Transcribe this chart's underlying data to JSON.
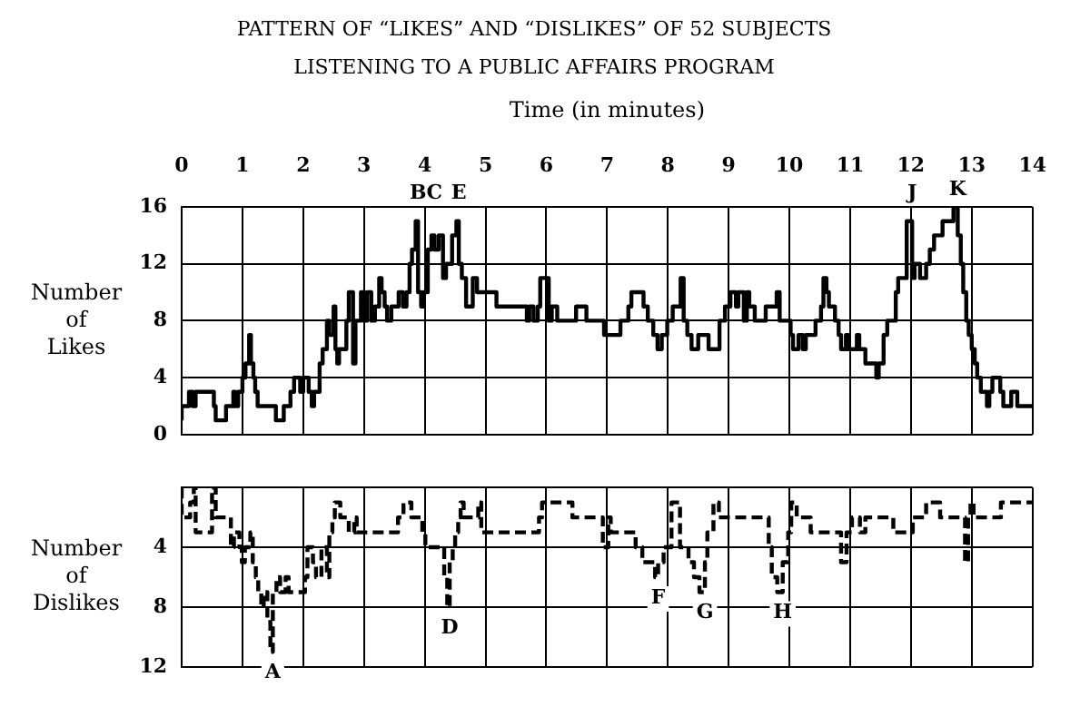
{
  "chart_data": [
    {
      "type": "step",
      "title": "PATTERN OF “LIKES” AND “DISLIKES” OF 52 SUBJECTS",
      "subtitle": "LISTENING TO A PUBLIC AFFAIRS PROGRAM",
      "xlabel": "Time (in minutes)",
      "ylabel": "Number of Likes",
      "color": "#000000",
      "line_style": "solid",
      "grid": true,
      "x": [
        0,
        0.12,
        0.18,
        0.23,
        0.53,
        0.56,
        0.73,
        0.85,
        0.88,
        0.93,
        1.0,
        1.05,
        1.11,
        1.14,
        1.18,
        1.21,
        1.25,
        1.55,
        1.68,
        1.79,
        1.85,
        1.95,
        2.0,
        2.09,
        2.14,
        2.18,
        2.27,
        2.32,
        2.39,
        2.43,
        2.5,
        2.53,
        2.56,
        2.59,
        2.71,
        2.75,
        2.82,
        2.86,
        2.95,
        3.0,
        3.05,
        3.12,
        3.18,
        3.25,
        3.29,
        3.34,
        3.38,
        3.45,
        3.57,
        3.64,
        3.7,
        3.75,
        3.79,
        3.85,
        3.89,
        3.94,
        3.98,
        4.05,
        4.11,
        4.16,
        4.23,
        4.3,
        4.35,
        4.45,
        4.52,
        4.56,
        4.61,
        4.68,
        4.79,
        4.86,
        5.18,
        5.68,
        5.72,
        5.79,
        5.86,
        5.9,
        6.04,
        6.09,
        6.18,
        6.49,
        6.66,
        6.95,
        7.22,
        7.35,
        7.4,
        7.6,
        7.67,
        7.76,
        7.83,
        7.9,
        7.99,
        8.08,
        8.21,
        8.26,
        8.32,
        8.39,
        8.5,
        8.67,
        8.85,
        8.94,
        9.03,
        9.12,
        9.16,
        9.25,
        9.3,
        9.34,
        9.43,
        9.61,
        9.79,
        9.84,
        10.02,
        10.06,
        10.15,
        10.22,
        10.27,
        10.43,
        10.52,
        10.56,
        10.61,
        10.65,
        10.75,
        10.81,
        10.85,
        10.93,
        10.97,
        11.11,
        11.15,
        11.25,
        11.43,
        11.47,
        11.55,
        11.61,
        11.75,
        11.79,
        11.93,
        12.02,
        12.06,
        12.15,
        12.25,
        12.31,
        12.38,
        12.52,
        12.7,
        12.77,
        12.82,
        12.86,
        12.91,
        12.95,
        13.0,
        13.05,
        13.09,
        13.15,
        13.25,
        13.29,
        13.34,
        13.47,
        13.52,
        13.65,
        13.75,
        13.82,
        14.0
      ],
      "values": [
        1,
        2,
        3,
        2,
        3,
        2,
        1,
        2,
        3,
        2,
        3,
        4,
        5,
        7,
        5,
        4,
        3,
        2,
        1,
        2,
        3,
        4,
        3,
        4,
        3,
        2,
        3,
        5,
        6,
        8,
        7,
        9,
        6,
        5,
        6,
        8,
        10,
        5,
        8,
        10,
        8,
        10,
        8,
        9,
        11,
        10,
        9,
        8,
        9,
        10,
        9,
        10,
        12,
        13,
        15,
        10,
        9,
        10,
        13,
        14,
        13,
        14,
        11,
        12,
        14,
        15,
        12,
        11,
        9,
        11,
        10,
        9,
        8,
        9,
        8,
        9,
        11,
        8,
        9,
        8,
        9,
        8,
        7,
        8,
        9,
        10,
        9,
        8,
        7,
        6,
        7,
        8,
        9,
        11,
        8,
        7,
        6,
        7,
        6,
        8,
        9,
        10,
        9,
        10,
        8,
        10,
        9,
        8,
        9,
        10,
        8,
        7,
        6,
        7,
        6,
        7,
        8,
        9,
        11,
        10,
        9,
        8,
        7,
        6,
        7,
        6,
        7,
        6,
        5,
        4,
        5,
        7,
        8,
        10,
        11,
        15,
        11,
        12,
        11,
        12,
        13,
        14,
        15,
        16,
        14,
        12,
        10,
        8,
        7,
        6,
        5,
        4,
        3,
        2,
        3,
        4,
        3,
        2,
        3,
        2,
        2
      ],
      "xlim": [
        0,
        14
      ],
      "xticks": [
        0,
        1,
        2,
        3,
        4,
        5,
        6,
        7,
        8,
        9,
        10,
        11,
        12,
        13,
        14
      ],
      "ylim": [
        0,
        16
      ],
      "yticks": [
        0,
        4,
        8,
        12,
        16
      ],
      "annotations": [
        {
          "text": "B",
          "x": 3.89,
          "y": 15
        },
        {
          "text": "C",
          "x": 4.16,
          "y": 14
        },
        {
          "text": "E",
          "x": 4.56,
          "y": 15
        },
        {
          "text": "J",
          "x": 12.02,
          "y": 15
        },
        {
          "text": "K",
          "x": 12.77,
          "y": 16
        }
      ]
    },
    {
      "type": "step",
      "ylabel": "Number of Dislikes",
      "color": "#000000",
      "line_style": "dashed",
      "grid": true,
      "tick_labels": "y",
      "x": [
        0,
        0.14,
        0.2,
        0.23,
        0.5,
        0.56,
        0.81,
        0.86,
        0.95,
        0.99,
        1.04,
        1.13,
        1.17,
        1.22,
        1.26,
        1.31,
        1.35,
        1.41,
        1.46,
        1.5,
        1.56,
        1.62,
        1.71,
        1.76,
        2.03,
        2.07,
        2.16,
        2.21,
        2.3,
        2.39,
        2.43,
        2.48,
        2.52,
        2.61,
        2.75,
        2.84,
        2.88,
        3.56,
        3.65,
        3.78,
        3.96,
        4.01,
        4.32,
        4.37,
        4.41,
        4.46,
        4.5,
        4.55,
        4.59,
        4.64,
        4.88,
        4.93,
        5.88,
        5.93,
        6.43,
        6.93,
        7.02,
        7.06,
        7.47,
        7.58,
        7.79,
        7.84,
        7.93,
        8.06,
        8.2,
        8.34,
        8.43,
        8.52,
        8.61,
        8.65,
        8.75,
        8.84,
        9.66,
        9.71,
        9.8,
        9.89,
        9.98,
        10.03,
        10.12,
        10.35,
        10.85,
        10.94,
        11.03,
        11.16,
        11.25,
        11.71,
        12.03,
        12.25,
        12.48,
        12.89,
        12.94,
        12.98,
        13.03,
        13.48,
        13.55,
        14.0
      ],
      "values": [
        0,
        2,
        1,
        0,
        3,
        0,
        2,
        4,
        3,
        4,
        5,
        4,
        3,
        5,
        6,
        7,
        8,
        7,
        9,
        11,
        7,
        6,
        7,
        6,
        7,
        6,
        4,
        5,
        6,
        4,
        6,
        3,
        2,
        1,
        2,
        3,
        2,
        3,
        2,
        1,
        2,
        3,
        4,
        6,
        8,
        5,
        4,
        3,
        2,
        1,
        2,
        1,
        3,
        2,
        1,
        2,
        4,
        2,
        3,
        4,
        5,
        6,
        5,
        4,
        1,
        4,
        5,
        6,
        7,
        5,
        3,
        1,
        2,
        4,
        6,
        7,
        5,
        3,
        1,
        2,
        3,
        5,
        3,
        2,
        3,
        2,
        3,
        2,
        1,
        2,
        5,
        2,
        1,
        2,
        1,
        1
      ],
      "xlim": [
        0,
        14
      ],
      "ylim": [
        12,
        0
      ],
      "yticks": [
        {
          "value": 0,
          "label": null
        },
        4,
        8,
        12
      ],
      "annotations": [
        {
          "text": "A",
          "x": 1.5,
          "y": 11
        },
        {
          "text": "D",
          "x": 4.41,
          "y": 8
        },
        {
          "text": "F",
          "x": 7.84,
          "y": 6
        },
        {
          "text": "G",
          "x": 8.61,
          "y": 7
        },
        {
          "text": "H",
          "x": 9.89,
          "y": 7
        }
      ]
    }
  ]
}
